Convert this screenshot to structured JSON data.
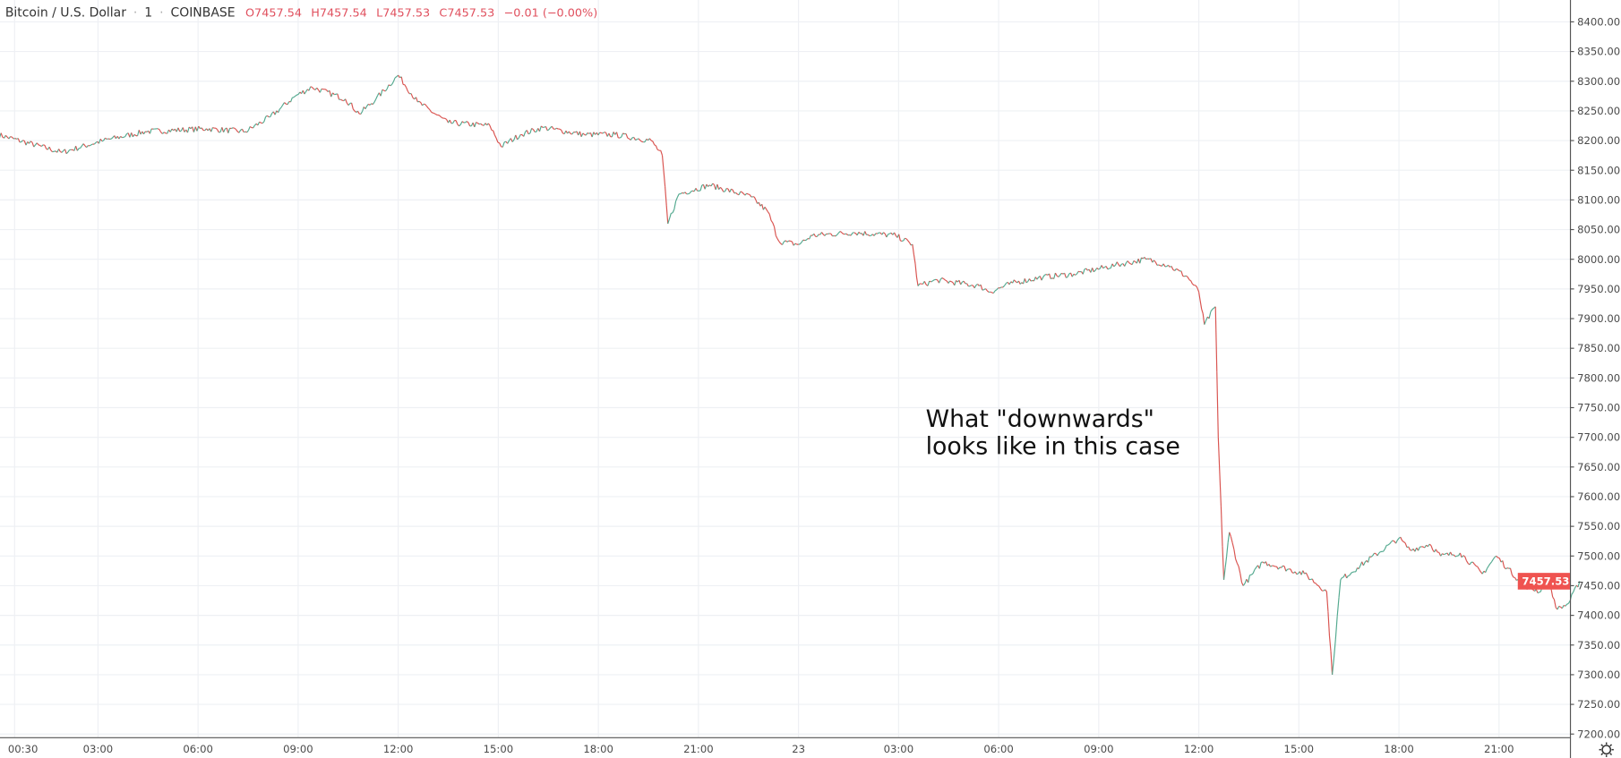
{
  "header": {
    "symbol": "Bitcoin / U.S. Dollar",
    "sep1": "·",
    "interval": "1",
    "sep2": "·",
    "exchange": "COINBASE",
    "open": "O7457.54",
    "high": "H7457.54",
    "low": "L7457.53",
    "close": "C7457.53",
    "change": "−0.01 (−0.00%)"
  },
  "annotation": {
    "line1": "What \"downwards\"",
    "line2": "looks like in this case"
  },
  "colors": {
    "up": "#53a98f",
    "down": "#d9534f",
    "ohlc_text": "#e0505e",
    "last_price_badge": "#ef5350",
    "grid": "#eef0f4"
  },
  "settings_icon": "gear-icon",
  "chart_data": {
    "type": "line",
    "style": "candlestick-1min",
    "ylim": [
      7200,
      8400
    ],
    "yticks": [
      "8400.00",
      "8350.00",
      "8300.00",
      "8250.00",
      "8200.00",
      "8150.00",
      "8100.00",
      "8050.00",
      "8000.00",
      "7950.00",
      "7900.00",
      "7850.00",
      "7800.00",
      "7750.00",
      "7700.00",
      "7650.00",
      "7600.00",
      "7550.00",
      "7500.00",
      "7450.00",
      "7400.00",
      "7350.00",
      "7300.00",
      "7250.00",
      "7200.00"
    ],
    "xticks": [
      {
        "day": "22",
        "time": "00:30",
        "label": "00:30"
      },
      {
        "day": "22",
        "time": "03:00",
        "label": "03:00"
      },
      {
        "day": "22",
        "time": "06:00",
        "label": "06:00"
      },
      {
        "day": "22",
        "time": "09:00",
        "label": "09:00"
      },
      {
        "day": "22",
        "time": "12:00",
        "label": "12:00"
      },
      {
        "day": "22",
        "time": "15:00",
        "label": "15:00"
      },
      {
        "day": "22",
        "time": "18:00",
        "label": "18:00"
      },
      {
        "day": "22",
        "time": "21:00",
        "label": "21:00"
      },
      {
        "day": "23",
        "time": "00:00",
        "label": "23"
      },
      {
        "day": "23",
        "time": "03:00",
        "label": "03:00"
      },
      {
        "day": "23",
        "time": "06:00",
        "label": "06:00"
      },
      {
        "day": "23",
        "time": "09:00",
        "label": "09:00"
      },
      {
        "day": "23",
        "time": "12:00",
        "label": "12:00"
      },
      {
        "day": "23",
        "time": "15:00",
        "label": "15:00"
      },
      {
        "day": "23",
        "time": "18:00",
        "label": "18:00"
      },
      {
        "day": "23",
        "time": "21:00",
        "label": "21:00"
      }
    ],
    "grid": true,
    "last_price": "7457.53",
    "series": [
      {
        "points": [
          [
            "22",
            "00:00",
            8210
          ],
          [
            "22",
            "01:55",
            8180
          ],
          [
            "22",
            "03:10",
            8200
          ],
          [
            "22",
            "04:25",
            8215
          ],
          [
            "22",
            "06:15",
            8220
          ],
          [
            "22",
            "07:25",
            8215
          ],
          [
            "22",
            "08:10",
            8240
          ],
          [
            "22",
            "08:55",
            8275
          ],
          [
            "22",
            "09:25",
            8290
          ],
          [
            "22",
            "10:25",
            8270
          ],
          [
            "22",
            "10:50",
            8245
          ],
          [
            "22",
            "11:20",
            8270
          ],
          [
            "22",
            "12:00",
            8310
          ],
          [
            "22",
            "12:35",
            8265
          ],
          [
            "22",
            "13:30",
            8230
          ],
          [
            "22",
            "14:45",
            8225
          ],
          [
            "22",
            "15:05",
            8190
          ],
          [
            "22",
            "15:40",
            8210
          ],
          [
            "22",
            "16:20",
            8222
          ],
          [
            "22",
            "17:35",
            8210
          ],
          [
            "22",
            "18:30",
            8210
          ],
          [
            "22",
            "19:35",
            8200
          ],
          [
            "22",
            "19:55",
            8175
          ],
          [
            "22",
            "20:05",
            8060
          ],
          [
            "22",
            "20:25",
            8110
          ],
          [
            "22",
            "21:20",
            8125
          ],
          [
            "22",
            "22:35",
            8105
          ],
          [
            "22",
            "23:05",
            8080
          ],
          [
            "22",
            "23:25",
            8030
          ],
          [
            "23",
            "00:00",
            8025
          ],
          [
            "23",
            "00:25",
            8040
          ],
          [
            "23",
            "01:40",
            8045
          ],
          [
            "23",
            "02:55",
            8040
          ],
          [
            "23",
            "03:25",
            8025
          ],
          [
            "23",
            "03:35",
            7955
          ],
          [
            "23",
            "04:10",
            7965
          ],
          [
            "23",
            "05:25",
            7955
          ],
          [
            "23",
            "05:45",
            7945
          ],
          [
            "23",
            "06:25",
            7960
          ],
          [
            "23",
            "07:20",
            7970
          ],
          [
            "23",
            "08:15",
            7975
          ],
          [
            "23",
            "09:30",
            7990
          ],
          [
            "23",
            "10:25",
            8000
          ],
          [
            "23",
            "11:05",
            7990
          ],
          [
            "23",
            "11:40",
            7970
          ],
          [
            "23",
            "12:00",
            7945
          ],
          [
            "23",
            "12:10",
            7890
          ],
          [
            "23",
            "12:30",
            7920
          ],
          [
            "23",
            "12:35",
            7700
          ],
          [
            "23",
            "12:45",
            7460
          ],
          [
            "23",
            "12:55",
            7540
          ],
          [
            "23",
            "13:20",
            7450
          ],
          [
            "23",
            "13:55",
            7490
          ],
          [
            "23",
            "15:10",
            7470
          ],
          [
            "23",
            "15:50",
            7440
          ],
          [
            "23",
            "16:00",
            7300
          ],
          [
            "23",
            "16:15",
            7460
          ],
          [
            "23",
            "16:45",
            7480
          ],
          [
            "23",
            "18:00",
            7530
          ],
          [
            "23",
            "18:20",
            7510
          ],
          [
            "23",
            "18:55",
            7520
          ],
          [
            "23",
            "19:15",
            7500
          ],
          [
            "23",
            "19:50",
            7505
          ],
          [
            "23",
            "20:30",
            7470
          ],
          [
            "23",
            "20:55",
            7500
          ],
          [
            "23",
            "21:15",
            7480
          ],
          [
            "23",
            "21:45",
            7450
          ],
          [
            "23",
            "22:15",
            7440
          ],
          [
            "23",
            "22:25",
            7465
          ],
          [
            "23",
            "22:45",
            7410
          ],
          [
            "23",
            "23:05",
            7420
          ],
          [
            "23",
            "23:25",
            7457.53
          ]
        ]
      }
    ]
  }
}
